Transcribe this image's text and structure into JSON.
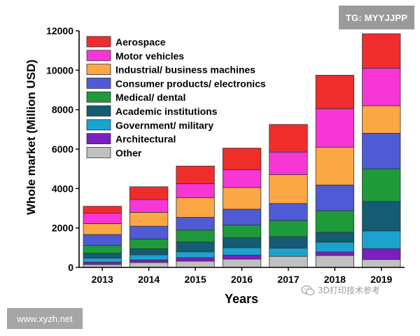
{
  "watermarks": {
    "top_right": "TG: MYYJJPP",
    "bottom_left": "www.xyzh.net",
    "wechat": "3D打印技术参考"
  },
  "chart_data": {
    "type": "bar",
    "stacked": true,
    "title": "",
    "xlabel": "Years",
    "ylabel": "Whole market (Million USD)",
    "ylim": [
      0,
      12000
    ],
    "yticks": [
      0,
      2000,
      4000,
      6000,
      8000,
      10000,
      12000
    ],
    "categories": [
      "2013",
      "2014",
      "2015",
      "2016",
      "2017",
      "2018",
      "2019"
    ],
    "legend_position": "top-left",
    "series": [
      {
        "name": "Other",
        "color": "#c0c0c0",
        "values": [
          150,
          250,
          320,
          420,
          560,
          600,
          400
        ]
      },
      {
        "name": "Architectural",
        "color": "#7a1fc0",
        "values": [
          120,
          130,
          170,
          200,
          0,
          180,
          550
        ]
      },
      {
        "name": "Government/ military",
        "color": "#1ba3d0",
        "values": [
          200,
          260,
          300,
          380,
          420,
          500,
          900
        ]
      },
      {
        "name": "Academic  institutions",
        "color": "#145c72",
        "values": [
          250,
          300,
          500,
          500,
          580,
          500,
          1500
        ]
      },
      {
        "name": "Medical/ dental",
        "color": "#1e9a3a",
        "values": [
          400,
          500,
          600,
          650,
          820,
          1100,
          1650
        ]
      },
      {
        "name": "Consumer products/ electronics",
        "color": "#4f5bd5",
        "values": [
          550,
          650,
          650,
          800,
          860,
          1300,
          1800
        ]
      },
      {
        "name": "Industrial/ business machines",
        "color": "#fba746",
        "values": [
          550,
          700,
          1000,
          1100,
          1460,
          1920,
          1400
        ]
      },
      {
        "name": "Motor vehicles",
        "color": "#f736d6",
        "values": [
          530,
          650,
          700,
          900,
          1150,
          1950,
          1900
        ]
      },
      {
        "name": "Aerospace",
        "color": "#f02d2d",
        "values": [
          350,
          650,
          900,
          1100,
          1400,
          1700,
          1750
        ]
      }
    ]
  }
}
